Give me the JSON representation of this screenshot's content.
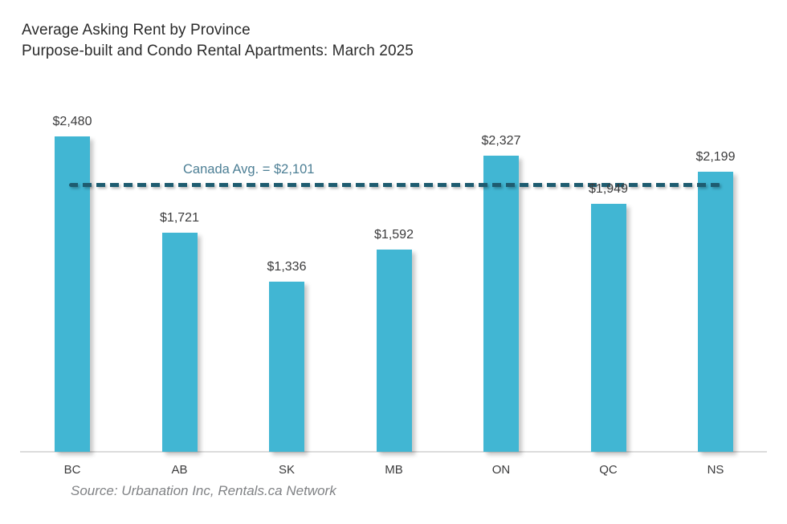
{
  "title": {
    "line1": "Average Asking Rent by Province",
    "line2": "Purpose-built and Condo Rental Apartments: March 2025"
  },
  "chart_data": {
    "type": "bar",
    "title": "Average Asking Rent by Province",
    "subtitle": "Purpose-built and Condo Rental Apartments: March 2025",
    "categories": [
      "BC",
      "AB",
      "SK",
      "MB",
      "ON",
      "QC",
      "NS"
    ],
    "values": [
      2480,
      1721,
      1336,
      1592,
      2327,
      1949,
      2199
    ],
    "value_labels": [
      "$2,480",
      "$1,721",
      "$1,336",
      "$1,592",
      "$2,327",
      "$1,949",
      "$2,199"
    ],
    "xlabel": "",
    "ylabel": "",
    "ylim": [
      0,
      2750
    ],
    "grid": false,
    "legend": false,
    "average_line": {
      "label": "Canada Avg. = $2,101",
      "value": 2101,
      "style": "dashed"
    },
    "colors": {
      "bar": "#41b6d3",
      "average_line": "#1e5c70",
      "average_label": "#4d7f95",
      "axis_line": "#dcdcdc",
      "text": "#3b3b3c"
    }
  },
  "source": "Source: Urbanation Inc, Rentals.ca Network"
}
